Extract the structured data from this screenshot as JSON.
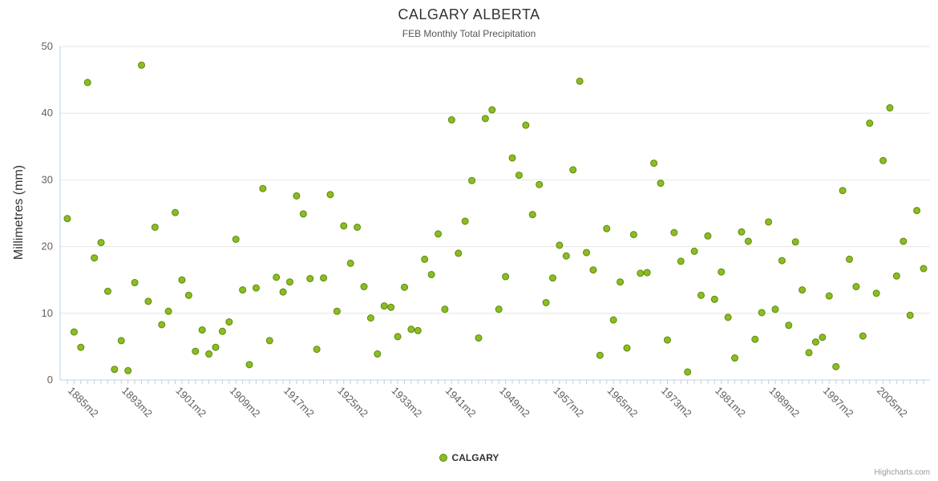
{
  "chart_data": {
    "type": "scatter",
    "title": "CALGARY ALBERTA",
    "subtitle": "FEB Monthly Total Precipitation",
    "xlabel": "",
    "ylabel": "Millimetres (mm)",
    "ylim": [
      0,
      50
    ],
    "y_ticks": [
      0,
      10,
      20,
      30,
      40,
      50
    ],
    "grid": true,
    "legend_position": "bottom",
    "x_tick_labels": [
      "1885m2",
      "1893m2",
      "1901m2",
      "1909m2",
      "1917m2",
      "1925m2",
      "1933m2",
      "1941m2",
      "1949m2",
      "1957m2",
      "1965m2",
      "1973m2",
      "1981m2",
      "1989m2",
      "1997m2",
      "2005m2"
    ],
    "x_label_interval": 8,
    "x_start_year": 1885,
    "series": [
      {
        "name": "CALGARY",
        "color": "#8bbc21",
        "marker_stroke": "#5c8a0f",
        "values": [
          24.2,
          7.2,
          4.9,
          44.6,
          18.3,
          20.6,
          13.3,
          1.6,
          5.9,
          1.4,
          14.6,
          47.2,
          11.8,
          22.9,
          8.3,
          10.3,
          25.1,
          15.0,
          12.7,
          4.3,
          7.5,
          3.9,
          4.9,
          7.3,
          8.7,
          21.1,
          13.5,
          2.3,
          13.8,
          28.7,
          5.9,
          15.4,
          13.2,
          14.7,
          27.6,
          24.9,
          15.2,
          4.6,
          15.3,
          27.8,
          10.3,
          23.1,
          17.5,
          22.9,
          14.0,
          9.3,
          3.9,
          11.1,
          10.9,
          6.5,
          13.9,
          7.6,
          7.4,
          18.1,
          15.8,
          21.9,
          10.6,
          39.0,
          19.0,
          23.8,
          29.9,
          6.3,
          39.2,
          40.5,
          10.6,
          15.5,
          33.3,
          30.7,
          38.2,
          24.8,
          29.3,
          11.6,
          15.3,
          20.2,
          18.6,
          31.5,
          44.8,
          19.1,
          16.5,
          3.7,
          22.7,
          9.0,
          14.7,
          4.8,
          21.8,
          16.0,
          16.1,
          32.5,
          29.5,
          6.0,
          22.1,
          17.8,
          1.2,
          19.3,
          12.7,
          21.6,
          12.1,
          16.2,
          9.4,
          3.3,
          22.2,
          20.8,
          6.1,
          10.1,
          23.7,
          10.6,
          17.9,
          8.2,
          20.7,
          13.5,
          4.1,
          5.7,
          6.4,
          12.6,
          2.0,
          28.4,
          18.1,
          14.0,
          6.6,
          38.5,
          13.0,
          32.9,
          40.8,
          15.6,
          20.8,
          9.7,
          25.4,
          16.7
        ]
      }
    ]
  },
  "credits": "Highcharts.com",
  "colors": {
    "grid_line": "#e6e6e6",
    "axis_line": "#c0d0e0",
    "tick_label": "#606060",
    "title_text": "#333333",
    "subtitle_text": "#555555"
  }
}
